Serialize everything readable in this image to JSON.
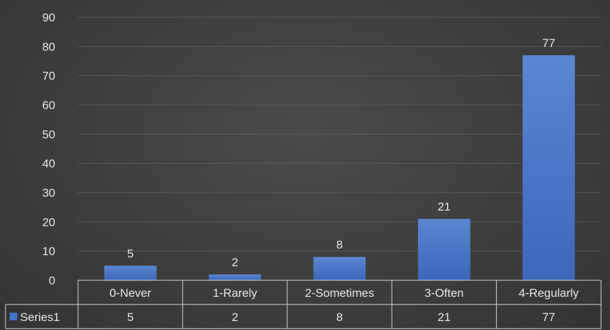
{
  "chart_data": {
    "type": "bar",
    "categories": [
      "0-Never",
      "1-Rarely",
      "2-Sometimes",
      "3-Often",
      "4-Regularly"
    ],
    "series": [
      {
        "name": "Series1",
        "values": [
          5,
          2,
          8,
          21,
          77
        ]
      }
    ],
    "title": "",
    "xlabel": "",
    "ylabel": "",
    "ylim": [
      0,
      90
    ],
    "yticks": [
      0,
      10,
      20,
      30,
      40,
      50,
      60,
      70,
      80,
      90
    ],
    "grid": true,
    "data_labels": true,
    "data_table": true,
    "legend": "data-table-key",
    "colors": {
      "bar": "#4472c4",
      "bar_top": "#5b86d1",
      "grid": "#5a5a5a",
      "table_border": "#d9d9d9",
      "text": "#e6e6e6"
    }
  }
}
